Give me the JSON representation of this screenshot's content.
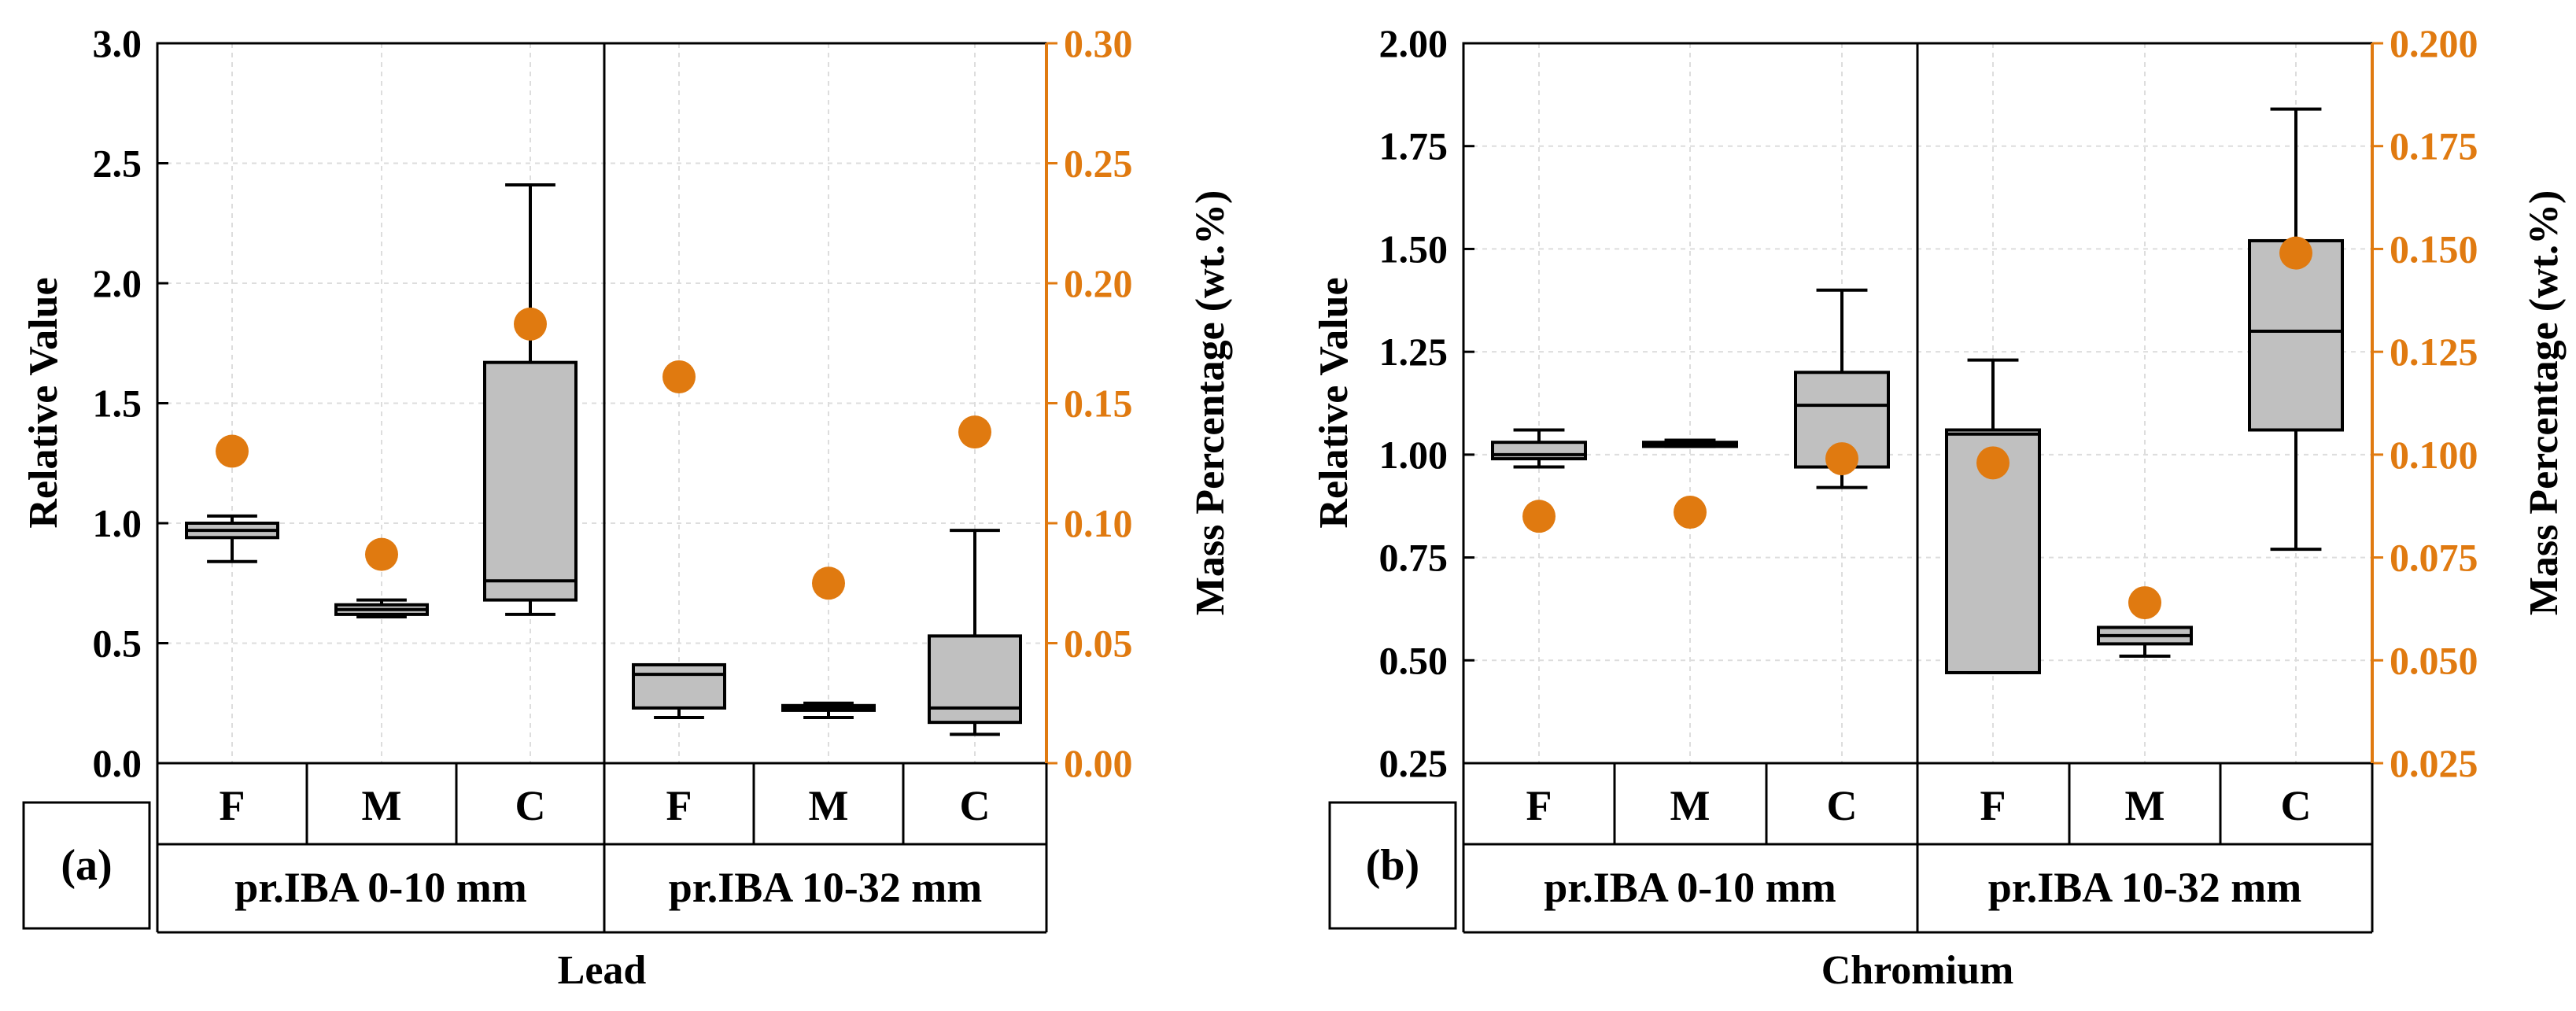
{
  "colors": {
    "right_axis": "#E07A10",
    "box_fill": "#c0c0c0",
    "marker": "#E07A10",
    "line": "#000000",
    "grid": "#dddddd"
  },
  "chart_data": [
    {
      "type": "box",
      "panel_label": "(a)",
      "title": "Lead",
      "ylabel_left": "Relative Value",
      "ylabel_right": "Mass Percentage (wt.%)",
      "ylim_left": [
        0,
        3
      ],
      "ylim_right": [
        0,
        0.3
      ],
      "yticks_left": [
        "0.0",
        "0.5",
        "1.0",
        "1.5",
        "2.0",
        "2.5",
        "3.0"
      ],
      "yticks_right": [
        "0.00",
        "0.05",
        "0.10",
        "0.15",
        "0.20",
        "0.25",
        "0.30"
      ],
      "groups": [
        "pr.IBA 0-10 mm",
        "pr.IBA 10-32 mm"
      ],
      "categories": [
        "F",
        "M",
        "C",
        "F",
        "M",
        "C"
      ],
      "boxes": [
        {
          "min": 0.84,
          "q1": 0.94,
          "median": 0.97,
          "q3": 1.0,
          "max": 1.03
        },
        {
          "min": 0.61,
          "q1": 0.62,
          "median": 0.64,
          "q3": 0.66,
          "max": 0.68
        },
        {
          "min": 0.62,
          "q1": 0.68,
          "median": 0.76,
          "q3": 1.67,
          "max": 2.41
        },
        {
          "min": 0.19,
          "q1": 0.23,
          "median": 0.37,
          "q3": 0.41,
          "max": 0.41
        },
        {
          "min": 0.19,
          "q1": 0.22,
          "median": 0.23,
          "q3": 0.24,
          "max": 0.25
        },
        {
          "min": 0.12,
          "q1": 0.17,
          "median": 0.23,
          "q3": 0.53,
          "max": 0.97
        }
      ],
      "mass_percentage": [
        0.13,
        0.087,
        0.183,
        0.161,
        0.075,
        0.138
      ]
    },
    {
      "type": "box",
      "panel_label": "(b)",
      "title": "Chromium",
      "ylabel_left": "Relative Value",
      "ylabel_right": "Mass Percentage (wt.%)",
      "ylim_left": [
        0.25,
        2.0
      ],
      "ylim_right": [
        0.025,
        0.2
      ],
      "yticks_left": [
        "0.25",
        "0.50",
        "0.75",
        "1.00",
        "1.25",
        "1.50",
        "1.75",
        "2.00"
      ],
      "yticks_right": [
        "0.025",
        "0.050",
        "0.075",
        "0.100",
        "0.125",
        "0.150",
        "0.175",
        "0.200"
      ],
      "groups": [
        "pr.IBA 0-10 mm",
        "pr.IBA 10-32 mm"
      ],
      "categories": [
        "F",
        "M",
        "C",
        "F",
        "M",
        "C"
      ],
      "boxes": [
        {
          "min": 0.97,
          "q1": 0.99,
          "median": 1.0,
          "q3": 1.03,
          "max": 1.06
        },
        {
          "min": 1.02,
          "q1": 1.02,
          "median": 1.025,
          "q3": 1.03,
          "max": 1.035
        },
        {
          "min": 0.92,
          "q1": 0.97,
          "median": 1.12,
          "q3": 1.2,
          "max": 1.4
        },
        {
          "min": 0.47,
          "q1": 0.47,
          "median": 1.05,
          "q3": 1.06,
          "max": 1.23
        },
        {
          "min": 0.51,
          "q1": 0.54,
          "median": 0.56,
          "q3": 0.58,
          "max": 0.58
        },
        {
          "min": 0.77,
          "q1": 1.06,
          "median": 1.3,
          "q3": 1.52,
          "max": 1.84
        }
      ],
      "mass_percentage": [
        0.085,
        0.086,
        0.099,
        0.098,
        0.064,
        0.149
      ]
    }
  ]
}
